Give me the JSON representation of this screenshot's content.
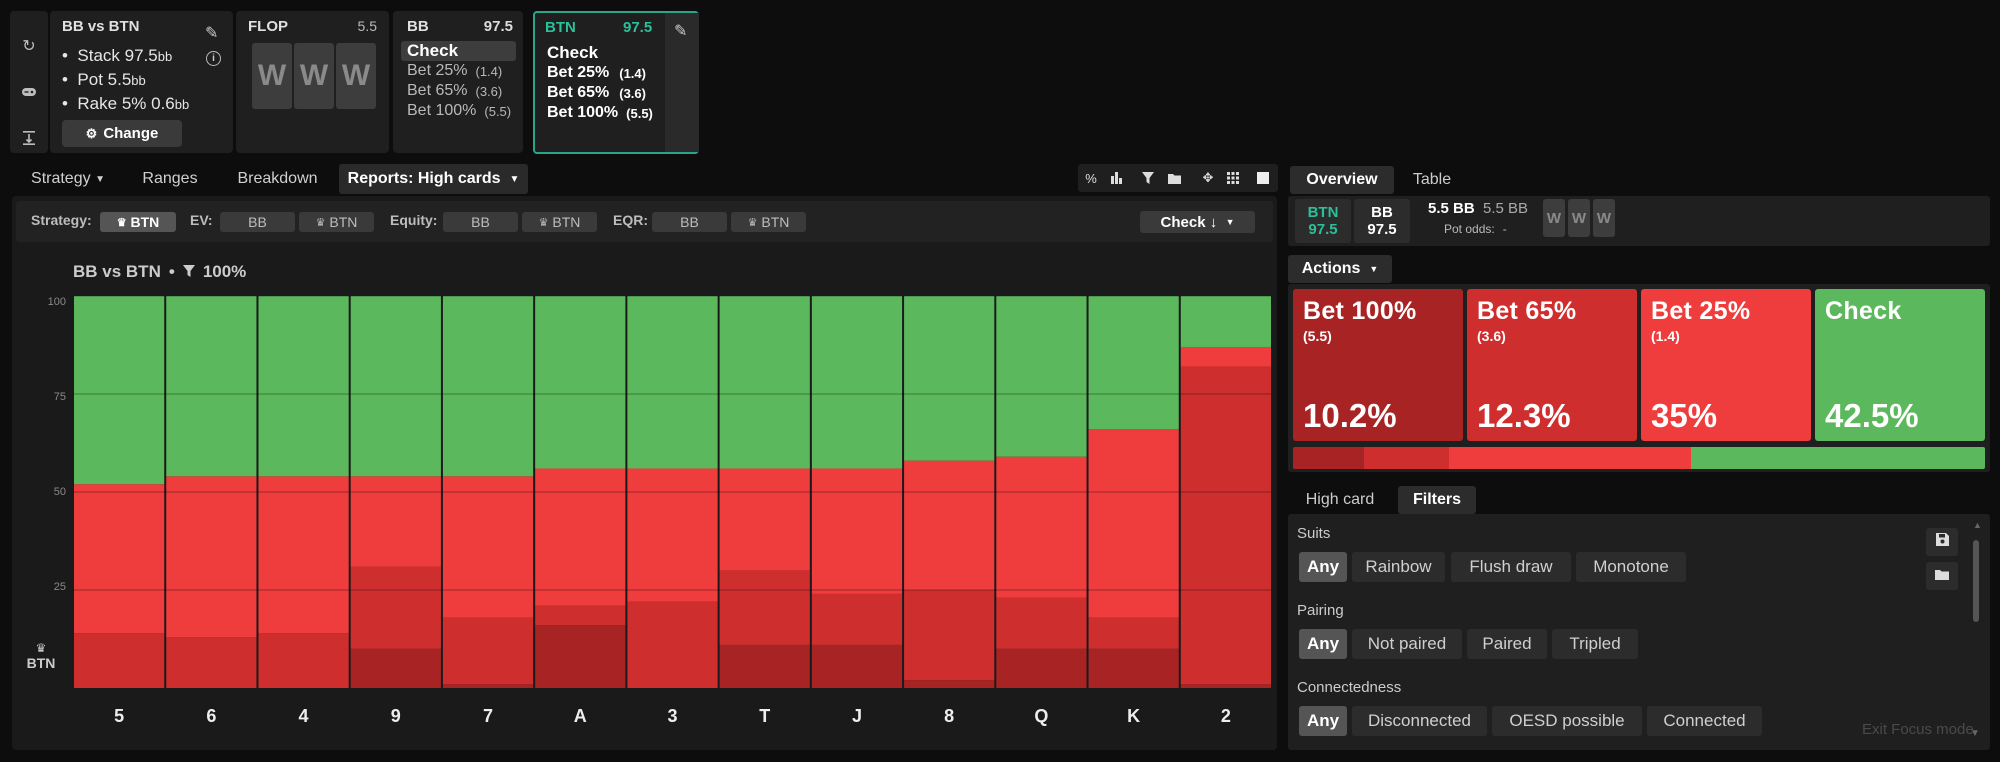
{
  "sidebar": {
    "icons": [
      "reset-icon",
      "gamepad-icon",
      "collapse-icon"
    ]
  },
  "game": {
    "title": "BB vs BTN",
    "stack_label": "Stack 97.5",
    "pot_label": "Pot 5.5",
    "rake_label": "Rake 5% 0.6",
    "unit": "bb",
    "change_label": "Change"
  },
  "flop": {
    "title": "FLOP",
    "pot": "5.5",
    "cards": [
      "W",
      "W",
      "W"
    ]
  },
  "bb_node": {
    "title": "BB",
    "stack": "97.5",
    "actions": [
      {
        "label": "Check",
        "size": ""
      },
      {
        "label": "Bet 25%",
        "size": "(1.4)"
      },
      {
        "label": "Bet 65%",
        "size": "(3.6)"
      },
      {
        "label": "Bet 100%",
        "size": "(5.5)"
      }
    ]
  },
  "btn_node": {
    "title": "BTN",
    "stack": "97.5",
    "actions": [
      {
        "label": "Check",
        "size": ""
      },
      {
        "label": "Bet 25%",
        "size": "(1.4)"
      },
      {
        "label": "Bet 65%",
        "size": "(3.6)"
      },
      {
        "label": "Bet 100%",
        "size": "(5.5)"
      }
    ]
  },
  "tabs": {
    "strategy": "Strategy",
    "ranges": "Ranges",
    "breakdown": "Breakdown",
    "reports": "Reports: High cards"
  },
  "filterbar": {
    "strategy_label": "Strategy:",
    "strategy_val": "BTN",
    "ev_label": "EV:",
    "equity_label": "Equity:",
    "eqr_label": "EQR:",
    "bb": "BB",
    "btn": "BTN",
    "check_sel": "Check ↓"
  },
  "chart_header": {
    "title": "BB vs BTN",
    "filter": "100%",
    "player": "BTN"
  },
  "colors": {
    "check": "#5cb85c",
    "bet25": "#ef3c3c",
    "bet65": "#cf2e2e",
    "bet100": "#a82424"
  },
  "chart_data": {
    "type": "bar",
    "stacked": true,
    "categories": [
      "5",
      "6",
      "4",
      "9",
      "7",
      "A",
      "3",
      "T",
      "J",
      "8",
      "Q",
      "K",
      "2"
    ],
    "ylim": [
      0,
      100
    ],
    "yticks": [
      100,
      75,
      50,
      25
    ],
    "series": [
      {
        "name": "Bet 100%",
        "values": [
          0,
          0,
          0,
          10,
          1,
          16,
          0,
          11,
          11,
          2,
          10,
          10,
          1
        ]
      },
      {
        "name": "Bet 65%",
        "values": [
          14,
          13,
          14,
          21,
          17,
          5,
          22,
          19,
          13,
          23,
          13,
          8,
          81
        ]
      },
      {
        "name": "Bet 25%",
        "values": [
          38,
          41,
          40,
          23,
          36,
          35,
          34,
          26,
          32,
          33,
          36,
          48,
          5
        ]
      },
      {
        "name": "Check",
        "values": [
          48,
          46,
          46,
          46,
          46,
          44,
          44,
          44,
          44,
          42,
          41,
          34,
          13
        ]
      }
    ]
  },
  "right_tabs": {
    "overview": "Overview",
    "table": "Table"
  },
  "summary": {
    "btn_label": "BTN",
    "btn_stack": "97.5",
    "bb_label": "BB",
    "bb_stack": "97.5",
    "pot1": "5.5 BB",
    "pot2": "5.5 BB",
    "pot_odds_label": "Pot odds:",
    "pot_odds_val": "-",
    "cards": [
      "W",
      "W",
      "W"
    ]
  },
  "actions_menu": "Actions",
  "action_tiles": [
    {
      "name": "Bet 100%",
      "size": "(5.5)",
      "pct": "10.2%",
      "color": "#a82424"
    },
    {
      "name": "Bet 65%",
      "size": "(3.6)",
      "pct": "12.3%",
      "color": "#cf2e2e"
    },
    {
      "name": "Bet 25%",
      "size": "(1.4)",
      "pct": "35%",
      "color": "#ef3c3c"
    },
    {
      "name": "Check",
      "size": "",
      "pct": "42.5%",
      "color": "#5cb85c"
    }
  ],
  "freq_bar": [
    10.2,
    12.3,
    35,
    42.5
  ],
  "lower_tabs": {
    "high_card": "High card",
    "filters": "Filters"
  },
  "filters": {
    "suits": {
      "label": "Suits",
      "options": [
        "Any",
        "Rainbow",
        "Flush draw",
        "Monotone"
      ]
    },
    "pairing": {
      "label": "Pairing",
      "options": [
        "Any",
        "Not paired",
        "Paired",
        "Tripled"
      ]
    },
    "connectedness": {
      "label": "Connectedness",
      "options": [
        "Any",
        "Disconnected",
        "OESD possible",
        "Connected"
      ]
    }
  },
  "exit_focus": "Exit Focus mode"
}
